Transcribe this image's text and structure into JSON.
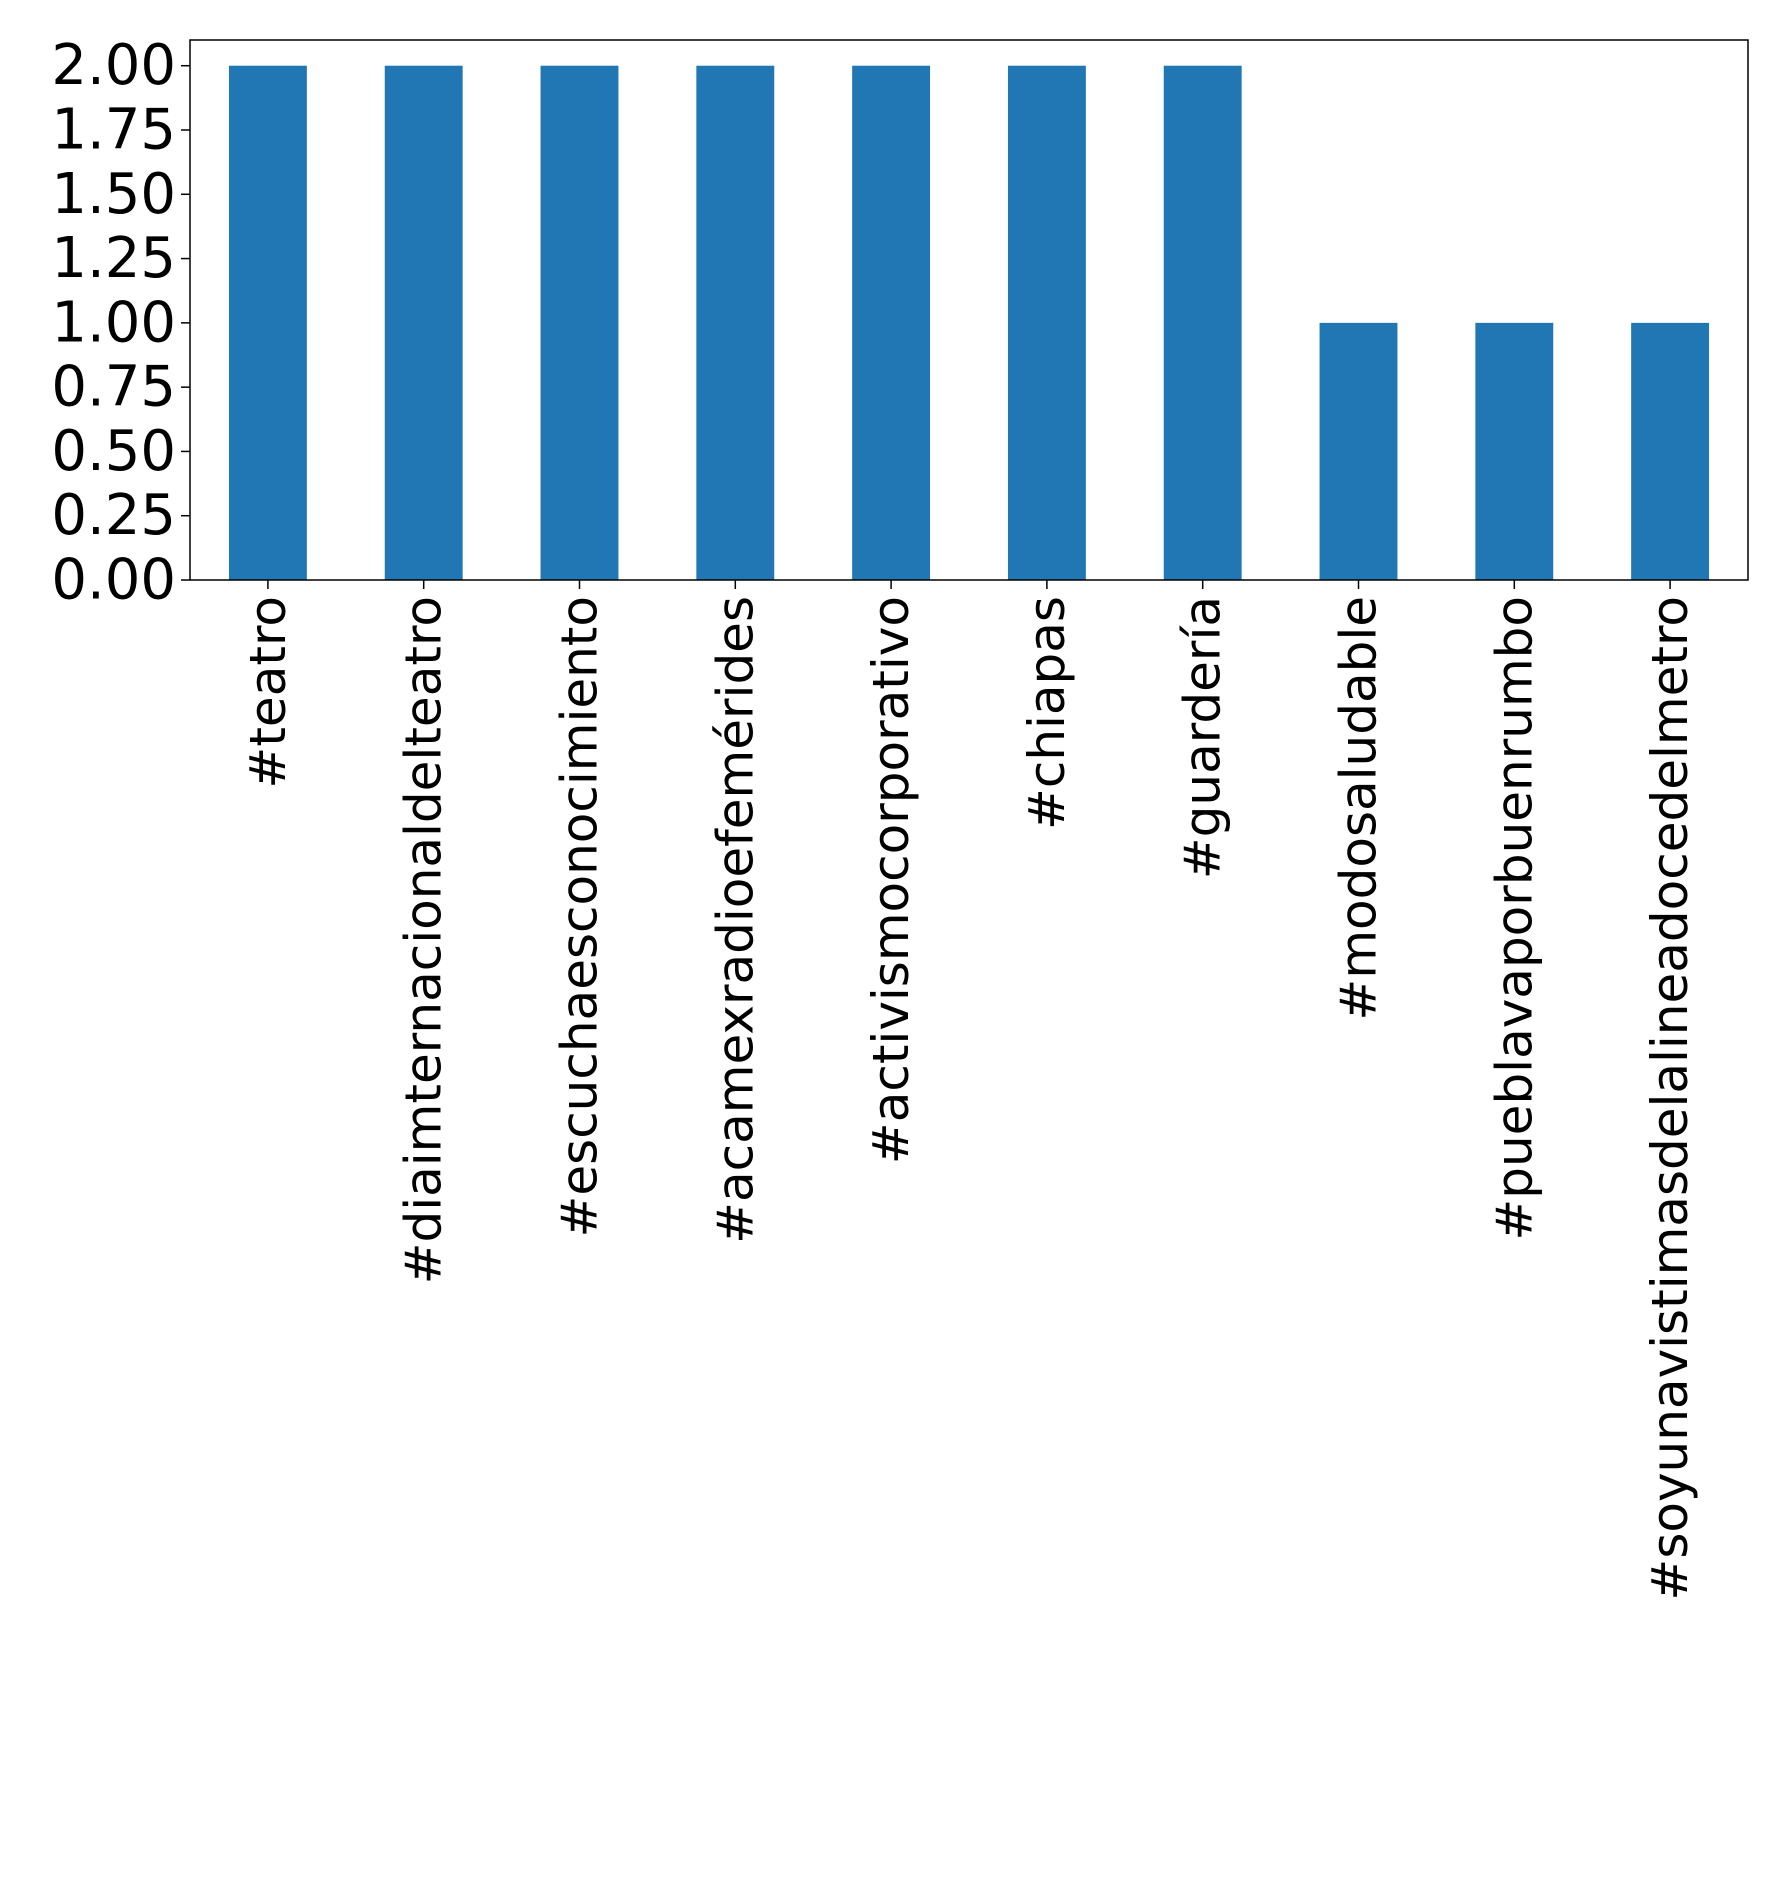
{
  "chart_data": {
    "type": "bar",
    "categories": [
      "#teatro",
      "#diaimternacionaldelteatro",
      "#escuchaesconocimiento",
      "#acamexradioefemérides",
      "#activismocorporativo",
      "#chiapas",
      "#guardería",
      "#modosaludable",
      "#pueblavaporbuenrumbo",
      "#soyunavistimasdelalineadocedelmetro"
    ],
    "values": [
      2,
      2,
      2,
      2,
      2,
      2,
      2,
      1,
      1,
      1
    ],
    "ylim": [
      0,
      2.1
    ],
    "yticks": [
      "0.00",
      "0.25",
      "0.50",
      "0.75",
      "1.00",
      "1.25",
      "1.50",
      "1.75",
      "2.00"
    ],
    "ytick_values": [
      0,
      0.25,
      0.5,
      0.75,
      1,
      1.25,
      1.5,
      1.75,
      2
    ],
    "title": "",
    "xlabel": "",
    "ylabel": "",
    "grid": false,
    "bar_color": "#2177b3"
  }
}
